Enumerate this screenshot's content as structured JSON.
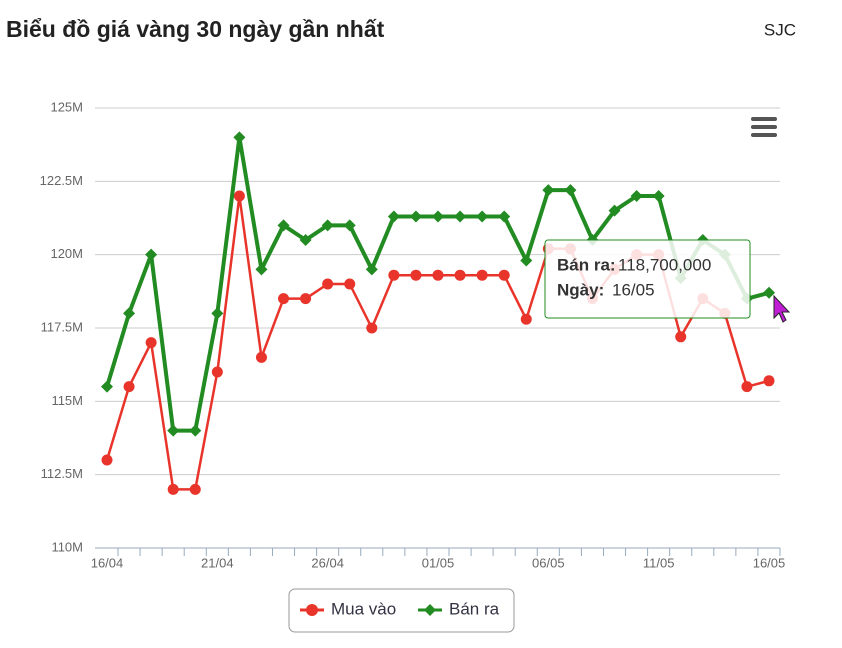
{
  "chart_data": {
    "type": "line",
    "title": "Biểu đồ giá vàng 30 ngày gần nhất",
    "subtitle": "SJC",
    "categories": [
      "16/04",
      null,
      null,
      null,
      null,
      "21/04",
      null,
      null,
      null,
      null,
      "26/04",
      null,
      null,
      null,
      null,
      "01/05",
      null,
      null,
      null,
      null,
      "06/05",
      null,
      null,
      null,
      null,
      "11/05",
      null,
      null,
      null,
      null,
      "16/05"
    ],
    "series": [
      {
        "name": "Mua vào",
        "color": "#e8342a",
        "marker": "circle",
        "values": [
          113,
          115.5,
          117,
          112,
          112,
          116,
          122,
          116.5,
          118.5,
          118.5,
          119,
          119,
          117.5,
          119.3,
          119.3,
          119.3,
          119.3,
          119.3,
          119.3,
          117.8,
          120.2,
          120.2,
          118.5,
          119.5,
          120,
          120,
          117.2,
          118.5,
          118,
          115.5,
          115.7
        ]
      },
      {
        "name": "Bán ra",
        "color": "#228b22",
        "marker": "diamond",
        "values": [
          115.5,
          118,
          120,
          114,
          114,
          118,
          124,
          119.5,
          121,
          120.5,
          121,
          121,
          119.5,
          121.3,
          121.3,
          121.3,
          121.3,
          121.3,
          121.3,
          119.8,
          122.2,
          122.2,
          120.5,
          121.5,
          122,
          122,
          119.2,
          120.5,
          120,
          118.5,
          118.7
        ]
      }
    ],
    "ylim": [
      110,
      125
    ],
    "yticks": [
      {
        "value": 110,
        "label": "110M"
      },
      {
        "value": 112.5,
        "label": "112.5M"
      },
      {
        "value": 115,
        "label": "115M"
      },
      {
        "value": 117.5,
        "label": "117.5M"
      },
      {
        "value": 120,
        "label": "120M"
      },
      {
        "value": 122.5,
        "label": "122.5M"
      },
      {
        "value": 125,
        "label": "125M"
      }
    ],
    "grid": true,
    "legend": "bottom",
    "tooltip": {
      "series_key": "Bán ra:",
      "value_label": "118,700,000",
      "date_key": "Ngày:",
      "date": "16/05"
    }
  }
}
